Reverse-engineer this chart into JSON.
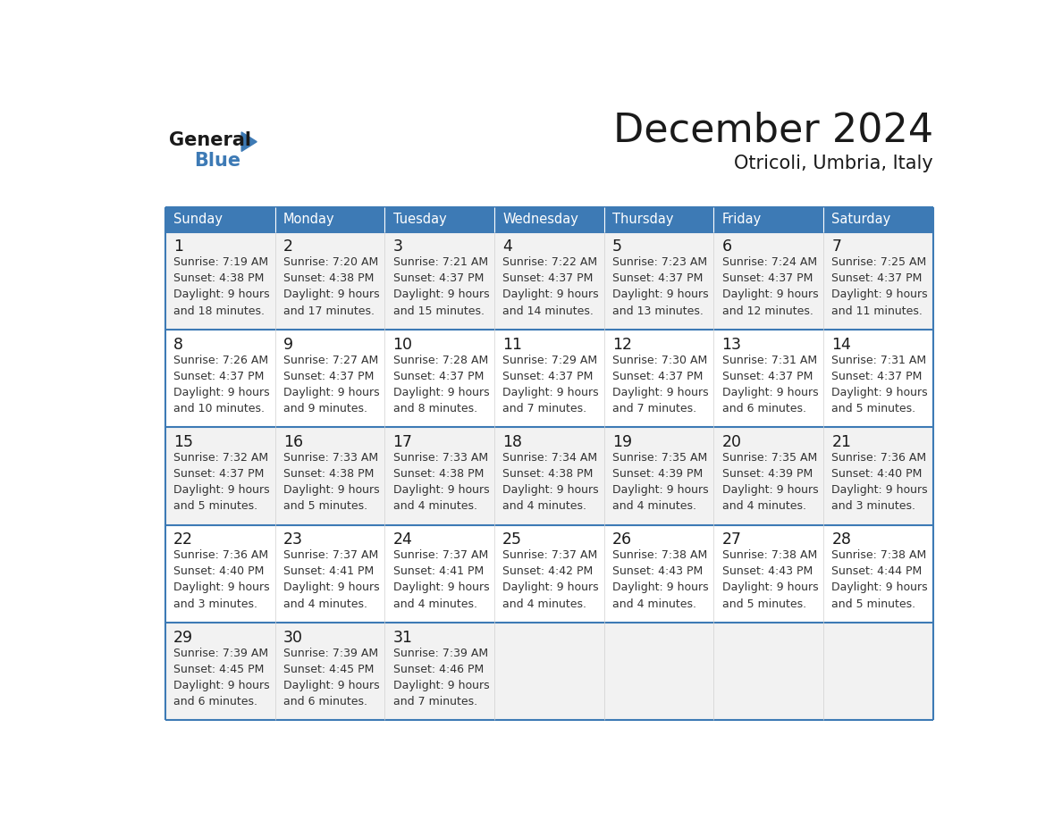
{
  "title": "December 2024",
  "subtitle": "Otricoli, Umbria, Italy",
  "header_color": "#3d7ab5",
  "header_text_color": "#ffffff",
  "row_colors": [
    "#f2f2f2",
    "#ffffff",
    "#f2f2f2",
    "#ffffff",
    "#f2f2f2"
  ],
  "border_color": "#3d7ab5",
  "divider_color": "#3d7ab5",
  "cell_divider_color": "#cccccc",
  "days_of_week": [
    "Sunday",
    "Monday",
    "Tuesday",
    "Wednesday",
    "Thursday",
    "Friday",
    "Saturday"
  ],
  "weeks": [
    [
      {
        "day": "1",
        "sunrise": "7:19 AM",
        "sunset": "4:38 PM",
        "daylight_h": "9 hours",
        "daylight_m": "and 18 minutes."
      },
      {
        "day": "2",
        "sunrise": "7:20 AM",
        "sunset": "4:38 PM",
        "daylight_h": "9 hours",
        "daylight_m": "and 17 minutes."
      },
      {
        "day": "3",
        "sunrise": "7:21 AM",
        "sunset": "4:37 PM",
        "daylight_h": "9 hours",
        "daylight_m": "and 15 minutes."
      },
      {
        "day": "4",
        "sunrise": "7:22 AM",
        "sunset": "4:37 PM",
        "daylight_h": "9 hours",
        "daylight_m": "and 14 minutes."
      },
      {
        "day": "5",
        "sunrise": "7:23 AM",
        "sunset": "4:37 PM",
        "daylight_h": "9 hours",
        "daylight_m": "and 13 minutes."
      },
      {
        "day": "6",
        "sunrise": "7:24 AM",
        "sunset": "4:37 PM",
        "daylight_h": "9 hours",
        "daylight_m": "and 12 minutes."
      },
      {
        "day": "7",
        "sunrise": "7:25 AM",
        "sunset": "4:37 PM",
        "daylight_h": "9 hours",
        "daylight_m": "and 11 minutes."
      }
    ],
    [
      {
        "day": "8",
        "sunrise": "7:26 AM",
        "sunset": "4:37 PM",
        "daylight_h": "9 hours",
        "daylight_m": "and 10 minutes."
      },
      {
        "day": "9",
        "sunrise": "7:27 AM",
        "sunset": "4:37 PM",
        "daylight_h": "9 hours",
        "daylight_m": "and 9 minutes."
      },
      {
        "day": "10",
        "sunrise": "7:28 AM",
        "sunset": "4:37 PM",
        "daylight_h": "9 hours",
        "daylight_m": "and 8 minutes."
      },
      {
        "day": "11",
        "sunrise": "7:29 AM",
        "sunset": "4:37 PM",
        "daylight_h": "9 hours",
        "daylight_m": "and 7 minutes."
      },
      {
        "day": "12",
        "sunrise": "7:30 AM",
        "sunset": "4:37 PM",
        "daylight_h": "9 hours",
        "daylight_m": "and 7 minutes."
      },
      {
        "day": "13",
        "sunrise": "7:31 AM",
        "sunset": "4:37 PM",
        "daylight_h": "9 hours",
        "daylight_m": "and 6 minutes."
      },
      {
        "day": "14",
        "sunrise": "7:31 AM",
        "sunset": "4:37 PM",
        "daylight_h": "9 hours",
        "daylight_m": "and 5 minutes."
      }
    ],
    [
      {
        "day": "15",
        "sunrise": "7:32 AM",
        "sunset": "4:37 PM",
        "daylight_h": "9 hours",
        "daylight_m": "and 5 minutes."
      },
      {
        "day": "16",
        "sunrise": "7:33 AM",
        "sunset": "4:38 PM",
        "daylight_h": "9 hours",
        "daylight_m": "and 5 minutes."
      },
      {
        "day": "17",
        "sunrise": "7:33 AM",
        "sunset": "4:38 PM",
        "daylight_h": "9 hours",
        "daylight_m": "and 4 minutes."
      },
      {
        "day": "18",
        "sunrise": "7:34 AM",
        "sunset": "4:38 PM",
        "daylight_h": "9 hours",
        "daylight_m": "and 4 minutes."
      },
      {
        "day": "19",
        "sunrise": "7:35 AM",
        "sunset": "4:39 PM",
        "daylight_h": "9 hours",
        "daylight_m": "and 4 minutes."
      },
      {
        "day": "20",
        "sunrise": "7:35 AM",
        "sunset": "4:39 PM",
        "daylight_h": "9 hours",
        "daylight_m": "and 4 minutes."
      },
      {
        "day": "21",
        "sunrise": "7:36 AM",
        "sunset": "4:40 PM",
        "daylight_h": "9 hours",
        "daylight_m": "and 3 minutes."
      }
    ],
    [
      {
        "day": "22",
        "sunrise": "7:36 AM",
        "sunset": "4:40 PM",
        "daylight_h": "9 hours",
        "daylight_m": "and 3 minutes."
      },
      {
        "day": "23",
        "sunrise": "7:37 AM",
        "sunset": "4:41 PM",
        "daylight_h": "9 hours",
        "daylight_m": "and 4 minutes."
      },
      {
        "day": "24",
        "sunrise": "7:37 AM",
        "sunset": "4:41 PM",
        "daylight_h": "9 hours",
        "daylight_m": "and 4 minutes."
      },
      {
        "day": "25",
        "sunrise": "7:37 AM",
        "sunset": "4:42 PM",
        "daylight_h": "9 hours",
        "daylight_m": "and 4 minutes."
      },
      {
        "day": "26",
        "sunrise": "7:38 AM",
        "sunset": "4:43 PM",
        "daylight_h": "9 hours",
        "daylight_m": "and 4 minutes."
      },
      {
        "day": "27",
        "sunrise": "7:38 AM",
        "sunset": "4:43 PM",
        "daylight_h": "9 hours",
        "daylight_m": "and 5 minutes."
      },
      {
        "day": "28",
        "sunrise": "7:38 AM",
        "sunset": "4:44 PM",
        "daylight_h": "9 hours",
        "daylight_m": "and 5 minutes."
      }
    ],
    [
      {
        "day": "29",
        "sunrise": "7:39 AM",
        "sunset": "4:45 PM",
        "daylight_h": "9 hours",
        "daylight_m": "and 6 minutes."
      },
      {
        "day": "30",
        "sunrise": "7:39 AM",
        "sunset": "4:45 PM",
        "daylight_h": "9 hours",
        "daylight_m": "and 6 minutes."
      },
      {
        "day": "31",
        "sunrise": "7:39 AM",
        "sunset": "4:46 PM",
        "daylight_h": "9 hours",
        "daylight_m": "and 7 minutes."
      },
      null,
      null,
      null,
      null
    ]
  ],
  "logo_general_color": "#1a1a1a",
  "logo_blue_color": "#3d7ab5",
  "logo_triangle_color": "#3d7ab5"
}
